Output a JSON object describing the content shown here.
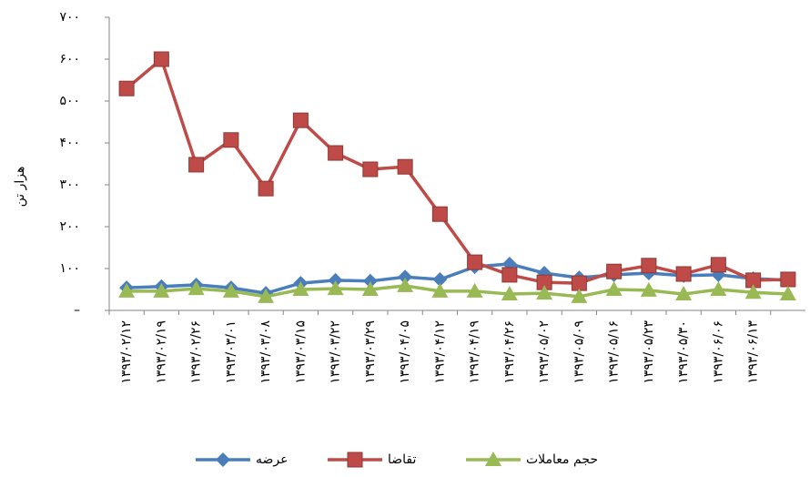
{
  "chart_data": {
    "type": "line",
    "y_label": "هزار تن",
    "categories": [
      "۱۳۹۳/۰۲/۱۲",
      "۱۳۹۳/۰۲/۱۹",
      "۱۳۹۳/۰۲/۲۶",
      "۱۳۹۳/۰۳/۰۱",
      "۱۳۹۳/۰۳/۰۸",
      "۱۳۹۳/۰۳/۱۵",
      "۱۳۹۳/۰۳/۲۲",
      "۱۳۹۳/۰۳/۲۹",
      "۱۳۹۳/۰۴/۰۵",
      "۱۳۹۳/۰۴/۱۲",
      "۱۳۹۳/۰۴/۱۹",
      "۱۳۹۳/۰۴/۲۶",
      "۱۳۹۳/۰۵/۰۲",
      "۱۳۹۳/۰۵/۰۹",
      "۱۳۹۳/۰۵/۱۶",
      "۱۳۹۳/۰۵/۲۳",
      "۱۳۹۳/۰۵/۳۰",
      "۱۳۹۳/۰۶/۰۶",
      "۱۳۹۳/۰۶/۱۳",
      null
    ],
    "series": [
      {
        "name": "عرضه",
        "color": "#4a7ebb",
        "marker": "diamond",
        "values": [
          54,
          57,
          61,
          54,
          41,
          65,
          72,
          70,
          80,
          74,
          104,
          111,
          89,
          78,
          85,
          89,
          83,
          85,
          76,
          72
        ]
      },
      {
        "name": "تقاضا",
        "color": "#be4b48",
        "marker": "square",
        "values": [
          530,
          600,
          348,
          407,
          291,
          454,
          376,
          337,
          343,
          230,
          115,
          85,
          67,
          65,
          93,
          107,
          87,
          109,
          72,
          74
        ]
      },
      {
        "name": "حجم معاملات",
        "color": "#98b954",
        "marker": "triangle",
        "values": [
          46,
          46,
          52,
          46,
          33,
          50,
          52,
          50,
          59,
          46,
          46,
          39,
          41,
          33,
          50,
          48,
          39,
          50,
          43,
          39
        ]
      }
    ],
    "ylim": [
      0,
      700
    ],
    "yticks": [
      {
        "value": 0,
        "label": "–"
      },
      {
        "value": 100,
        "label": "۱۰۰"
      },
      {
        "value": 200,
        "label": "۲۰۰"
      },
      {
        "value": 300,
        "label": "۳۰۰"
      },
      {
        "value": 400,
        "label": "۴۰۰"
      },
      {
        "value": 500,
        "label": "۵۰۰"
      },
      {
        "value": 600,
        "label": "۶۰۰"
      },
      {
        "value": 700,
        "label": "۷۰۰"
      }
    ]
  }
}
